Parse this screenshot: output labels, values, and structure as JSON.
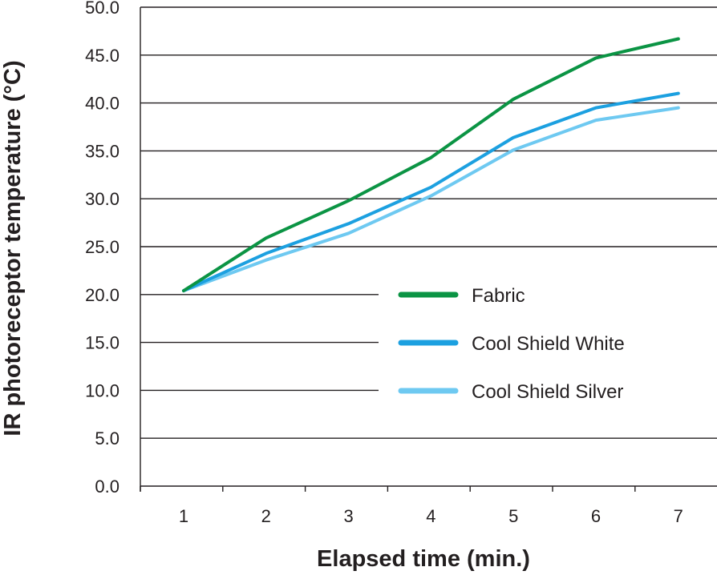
{
  "chart_data": {
    "type": "line",
    "xlabel": "Elapsed time (min.)",
    "ylabel": "IR photoreceptor temperature (°C)",
    "x": [
      1,
      2,
      3,
      4,
      5,
      6,
      7
    ],
    "x_tick_labels": [
      "1",
      "2",
      "3",
      "4",
      "5",
      "6",
      "7"
    ],
    "ylim": [
      0,
      50
    ],
    "y_tick_labels": [
      "0.0",
      "5.0",
      "10.0",
      "15.0",
      "20.0",
      "25.0",
      "30.0",
      "35.0",
      "40.0",
      "45.0",
      "50.0"
    ],
    "grid": "horizontal",
    "legend_position": "lower-right",
    "series": [
      {
        "name": "Fabric",
        "color": "#0b9444",
        "values": [
          20.4,
          25.9,
          29.8,
          34.3,
          40.4,
          44.7,
          46.7
        ]
      },
      {
        "name": "Cool Shield White",
        "color": "#1ca0e0",
        "values": [
          20.4,
          24.3,
          27.4,
          31.2,
          36.4,
          39.5,
          41.0
        ]
      },
      {
        "name": "Cool Shield Silver",
        "color": "#6ec9f1",
        "values": [
          20.4,
          23.6,
          26.4,
          30.3,
          35.1,
          38.2,
          39.5
        ]
      }
    ]
  }
}
